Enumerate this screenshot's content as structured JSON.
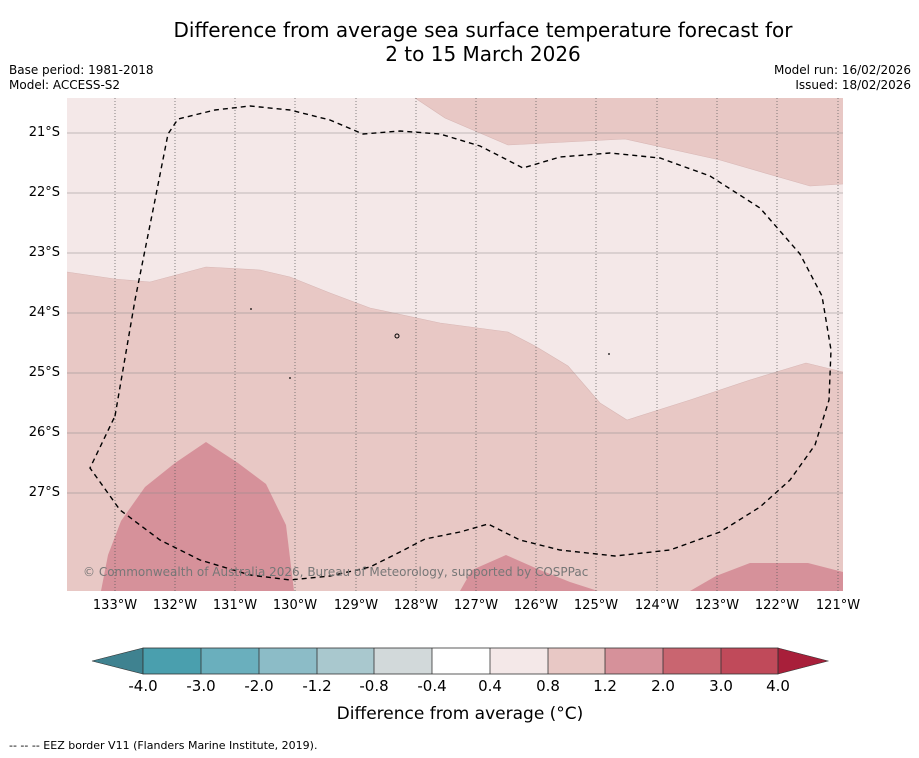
{
  "title_line1": "Difference from average sea surface temperature forecast for",
  "title_line2": "2 to 15 March 2026",
  "base_period": "Base period: 1981-2018",
  "model": "Model: ACCESS-S2",
  "model_run": "Model run: 16/02/2026",
  "issued": "Issued: 18/02/2026",
  "copyright": "© Commonwealth of Australia 2026, Bureau of Meteorology, supported by COSPPac",
  "footer": "--  --  -- EEZ border V11 (Flanders Marine Institute, 2019).",
  "colorbar": {
    "title": "Difference from average (°C)",
    "ticks": [
      "-4.0",
      "-3.0",
      "-2.0",
      "-1.2",
      "-0.8",
      "-0.4",
      "0.4",
      "0.8",
      "1.2",
      "2.0",
      "3.0",
      "4.0"
    ],
    "colors": [
      "#4a9fae",
      "#6aafbd",
      "#8cbcc7",
      "#a9c8ce",
      "#d2d9da",
      "#ffffff",
      "#f4e8e8",
      "#e8c8c5",
      "#d6919a",
      "#c96570",
      "#c04a5a"
    ],
    "extend_low": "#3f8290",
    "extend_high": "#a81f3a"
  },
  "chart_data": {
    "type": "contour_map",
    "lat_labels": [
      "21°S",
      "22°S",
      "23°S",
      "24°S",
      "25°S",
      "26°S",
      "27°S"
    ],
    "lon_labels": [
      "133°W",
      "132°W",
      "131°W",
      "130°W",
      "129°W",
      "128°W",
      "127°W",
      "126°W",
      "125°W",
      "124°W",
      "123°W",
      "122°W",
      "121°W"
    ],
    "regions": [
      {
        "name": "0.4 to 0.8",
        "color": "#f4e8e8"
      },
      {
        "name": "0.8 to 1.2",
        "color": "#e8c8c5"
      },
      {
        "name": "1.2 to 2.0",
        "color": "#d6919a"
      }
    ]
  }
}
